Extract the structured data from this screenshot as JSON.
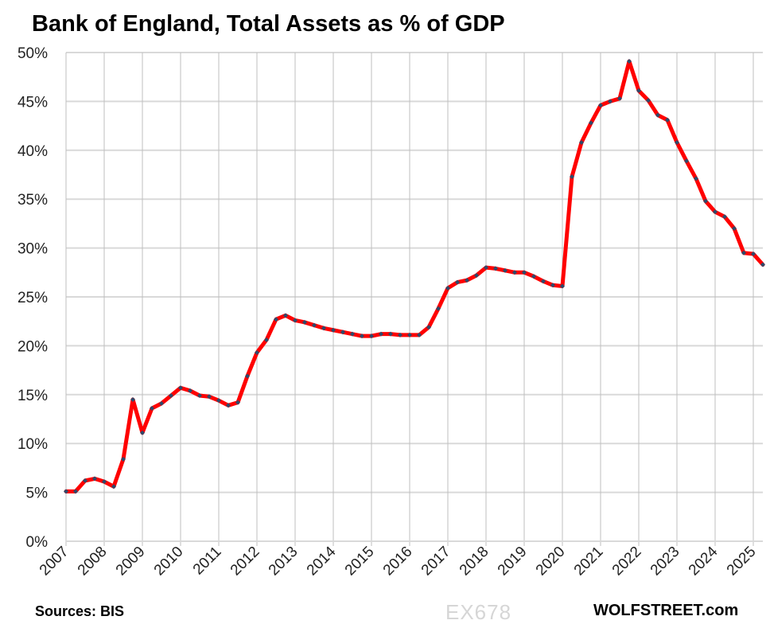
{
  "chart_data": {
    "type": "line",
    "title": "Bank of England, Total Assets as % of GDP",
    "xlabel": "",
    "ylabel": "",
    "ylim": [
      0,
      50
    ],
    "yticks": [
      "0%",
      "5%",
      "10%",
      "15%",
      "20%",
      "25%",
      "30%",
      "35%",
      "40%",
      "45%",
      "50%"
    ],
    "xticks": [
      "2007",
      "2008",
      "2009",
      "2010",
      "2011",
      "2012",
      "2013",
      "2014",
      "2015",
      "2016",
      "2017",
      "2018",
      "2019",
      "2020",
      "2021",
      "2022",
      "2023",
      "2024",
      "2025"
    ],
    "frequency": "quarterly",
    "x_start": "2007 Q1",
    "x_end": "2025 Q2",
    "grid": true,
    "legend": "none",
    "line_color": "#ff0000",
    "marker_color": "#2e4a6b",
    "series": [
      {
        "values": [
          5.1,
          5.1,
          6.2,
          6.4,
          6.1,
          5.6,
          8.4,
          14.5,
          11.1,
          13.6,
          14.1,
          14.9,
          15.7,
          15.4,
          14.9,
          14.8,
          14.4,
          13.9,
          14.2,
          16.9,
          19.3,
          20.6,
          22.7,
          23.1,
          22.6,
          22.4,
          22.1,
          21.8,
          21.6,
          21.4,
          21.2,
          21.0,
          21.0,
          21.2,
          21.2,
          21.1,
          21.1,
          21.1,
          21.9,
          23.8,
          25.9,
          26.5,
          26.7,
          27.2,
          28.0,
          27.9,
          27.7,
          27.5,
          27.5,
          27.1,
          26.6,
          26.2,
          26.1,
          37.3,
          40.8,
          42.8,
          44.6,
          45.0,
          45.3,
          49.1,
          46.1,
          45.1,
          43.6,
          43.1,
          40.8,
          38.9,
          37.1,
          34.8,
          33.7,
          33.2,
          32.0,
          29.5,
          29.4,
          28.3
        ]
      }
    ]
  },
  "footer": {
    "sources": "Sources: BIS",
    "brand": "WOLFSTREET.com",
    "watermark": "EX678"
  }
}
